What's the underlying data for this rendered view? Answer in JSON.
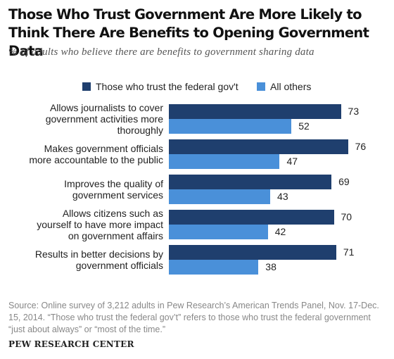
{
  "chart_data": {
    "type": "bar",
    "orientation": "horizontal",
    "title": "Those Who Trust Government Are More Likely to Think There Are Benefits to Opening Government Data",
    "subtitle": "% of adults who believe there are benefits to government sharing data",
    "categories": [
      "Allows journalists to cover government activities more thoroughly",
      "Makes government officials more accountable to the public",
      "Improves the quality of government services",
      "Allows citizens such as yourself to have more impact on government affairs",
      "Results in better decisions by government officials"
    ],
    "category_lines": [
      [
        "Allows journalists to cover",
        "government activities more",
        "thoroughly"
      ],
      [
        "Makes government officials",
        "more accountable to the public"
      ],
      [
        "Improves the quality of",
        "government services"
      ],
      [
        "Allows citizens such as",
        "yourself to have more impact",
        "on government affairs"
      ],
      [
        "Results in better decisions by",
        "government officials"
      ]
    ],
    "series": [
      {
        "name": "Those who trust the federal gov't",
        "color": "#1f3f6e",
        "values": [
          73,
          76,
          69,
          70,
          71
        ]
      },
      {
        "name": "All others",
        "color": "#4a90d9",
        "values": [
          52,
          47,
          43,
          42,
          38
        ]
      }
    ],
    "xlim": [
      0,
      100
    ],
    "grid": false,
    "legend_position": "top"
  },
  "footer": {
    "source": "Source: Online survey of 3,212 adults in Pew Research’s American Trends Panel, Nov. 17-Dec. 15, 2014. “Those who trust the federal gov’t” refers to those who trust the federal government “just about always” or “most of the time.”",
    "organization": "PEW RESEARCH CENTER"
  }
}
